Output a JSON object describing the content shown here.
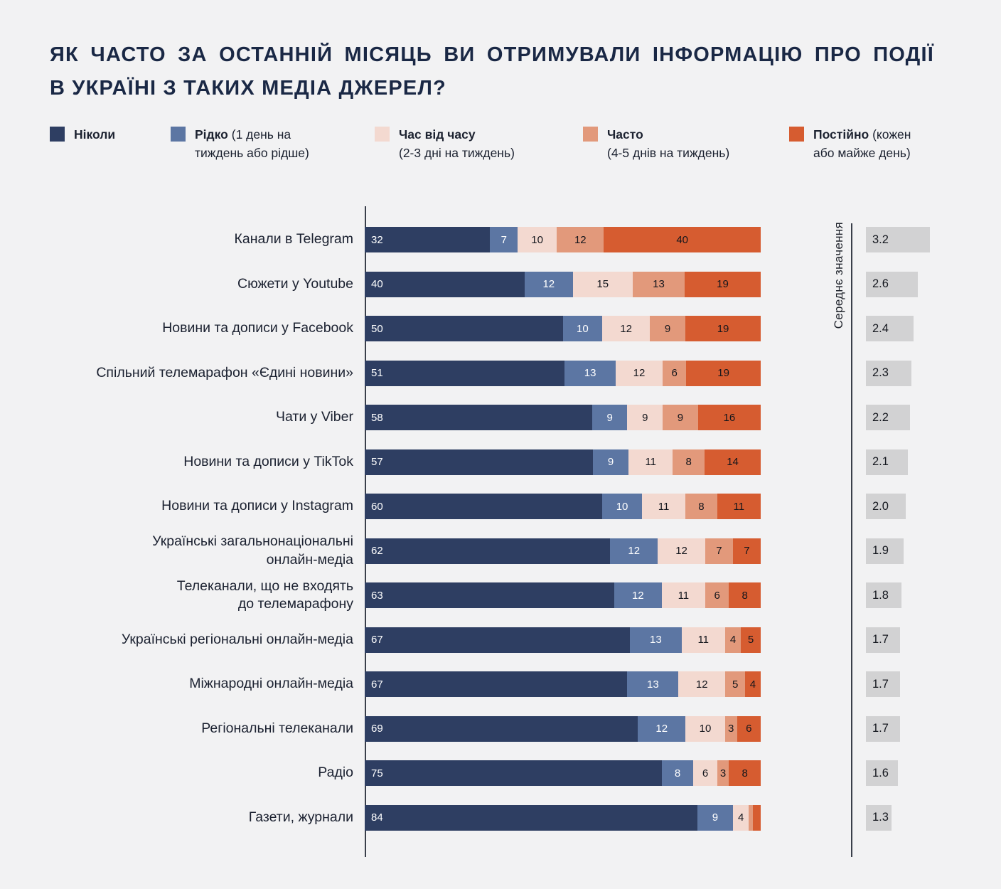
{
  "title": {
    "line1": "ЯК ЧАСТО ЗА ОСТАННІЙ МІСЯЦЬ ВИ ОТРИМУВАЛИ ІНФОРМАЦІЮ ПРО ПОДІЇ",
    "line2": "В УКРАЇНІ З ТАКИХ МЕДІА ДЖЕРЕЛ?"
  },
  "legend": {
    "items": [
      {
        "bold": "Ніколи",
        "rest_line1": "",
        "line2": "",
        "color": "#2e3e62"
      },
      {
        "bold": "Рідко",
        "rest_line1": " (1 день на",
        "line2": "тиждень або рідше)",
        "color": "#5c76a3"
      },
      {
        "bold": "Час від часу",
        "rest_line1": "",
        "line2": "(2-3 дні на тиждень)",
        "color": "#f3d9d0"
      },
      {
        "bold": "Часто",
        "rest_line1": "",
        "line2": "(4-5 днів на тиждень)",
        "color": "#e2997b"
      },
      {
        "bold": "Постійно",
        "rest_line1": " (кожен",
        "line2": "або майже день)",
        "color": "#d65c30"
      }
    ]
  },
  "chart_data": {
    "type": "bar",
    "stacked": true,
    "orientation": "horizontal",
    "value_unit": "percent",
    "mean_axis_label": "Середнє значення",
    "hide_segment_labels_below": 3,
    "series": [
      {
        "name": "Ніколи",
        "color": "#2e3e62"
      },
      {
        "name": "Рідко (1 день на тиждень або рідше)",
        "color": "#5c76a3"
      },
      {
        "name": "Час від часу (2-3 дні на тиждень)",
        "color": "#f3d9d0"
      },
      {
        "name": "Часто (4-5 днів на тиждень)",
        "color": "#e2997b"
      },
      {
        "name": "Постійно (кожен або майже день)",
        "color": "#d65c30"
      }
    ],
    "rows": [
      {
        "label": "Канали в Telegram",
        "values": [
          32,
          7,
          10,
          12,
          40
        ],
        "mean": "3.2"
      },
      {
        "label": "Сюжети у Youtube",
        "values": [
          40,
          12,
          15,
          13,
          19
        ],
        "mean": "2.6"
      },
      {
        "label": "Новини та дописи у Facebook",
        "values": [
          50,
          10,
          12,
          9,
          19
        ],
        "mean": "2.4"
      },
      {
        "label": "Спільний телемарафон «Єдині новини»",
        "values": [
          51,
          13,
          12,
          6,
          19
        ],
        "mean": "2.3"
      },
      {
        "label": "Чати у Viber",
        "values": [
          58,
          9,
          9,
          9,
          16
        ],
        "mean": "2.2"
      },
      {
        "label": "Новини та дописи у TikTok",
        "values": [
          57,
          9,
          11,
          8,
          14
        ],
        "mean": "2.1"
      },
      {
        "label": "Новини та дописи у Instagram",
        "values": [
          60,
          10,
          11,
          8,
          11
        ],
        "mean": "2.0"
      },
      {
        "label": "Українські загальнонаціональні\nонлайн-медіа",
        "values": [
          62,
          12,
          12,
          7,
          7
        ],
        "mean": "1.9"
      },
      {
        "label": "Телеканали, що не входять\nдо телемарафону",
        "values": [
          63,
          12,
          11,
          6,
          8
        ],
        "mean": "1.8"
      },
      {
        "label": "Українські регіональні онлайн-медіа",
        "values": [
          67,
          13,
          11,
          4,
          5
        ],
        "mean": "1.7"
      },
      {
        "label": "Міжнародні онлайн-медіа",
        "values": [
          67,
          13,
          12,
          5,
          4
        ],
        "mean": "1.7"
      },
      {
        "label": "Регіональні телеканали",
        "values": [
          69,
          12,
          10,
          3,
          6
        ],
        "mean": "1.7"
      },
      {
        "label": "Радіо",
        "values": [
          75,
          8,
          6,
          3,
          8
        ],
        "mean": "1.6"
      },
      {
        "label": "Газети, журнали",
        "values": [
          84,
          9,
          4,
          1,
          2
        ],
        "mean": "1.3"
      }
    ]
  }
}
